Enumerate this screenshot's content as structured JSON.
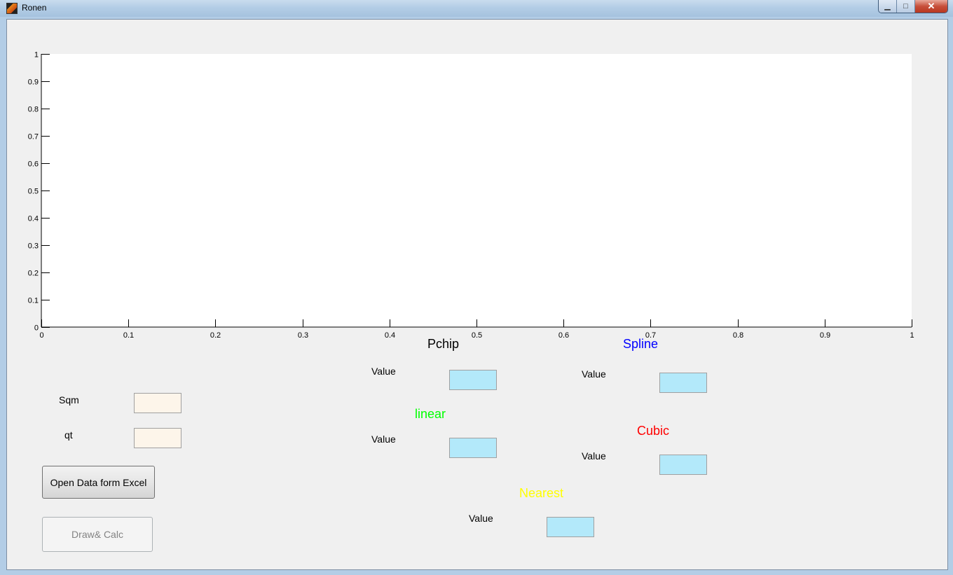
{
  "window": {
    "title": "Ronen",
    "minimize_glyph": "▁",
    "maximize_glyph": "□",
    "close_glyph": "✕"
  },
  "chart_data": {
    "type": "line",
    "series": [],
    "xlim": [
      0,
      1
    ],
    "ylim": [
      0,
      1
    ],
    "x_ticks": [
      "0",
      "0.1",
      "0.2",
      "0.3",
      "0.4",
      "0.5",
      "0.6",
      "0.7",
      "0.8",
      "0.9",
      "1"
    ],
    "y_ticks": [
      "0",
      "0.1",
      "0.2",
      "0.3",
      "0.4",
      "0.5",
      "0.6",
      "0.7",
      "0.8",
      "0.9",
      "1"
    ],
    "grid": false
  },
  "inputs": {
    "sqm_label": "Sqm",
    "qt_label": "qt"
  },
  "methods": {
    "pchip": {
      "title": "Pchip",
      "value_label": "Value",
      "color": "#000000"
    },
    "spline": {
      "title": "Spline",
      "value_label": "Value",
      "color": "#0000ff"
    },
    "linear": {
      "title": "linear",
      "value_label": "Value",
      "color": "#00ff00"
    },
    "cubic": {
      "title": "Cubic",
      "value_label": "Value",
      "color": "#ff0000"
    },
    "nearest": {
      "title": "Nearest",
      "value_label": "Value",
      "color": "#ffff00"
    }
  },
  "buttons": {
    "open_excel": "Open Data form Excel",
    "draw_calc": "Draw& Calc"
  }
}
